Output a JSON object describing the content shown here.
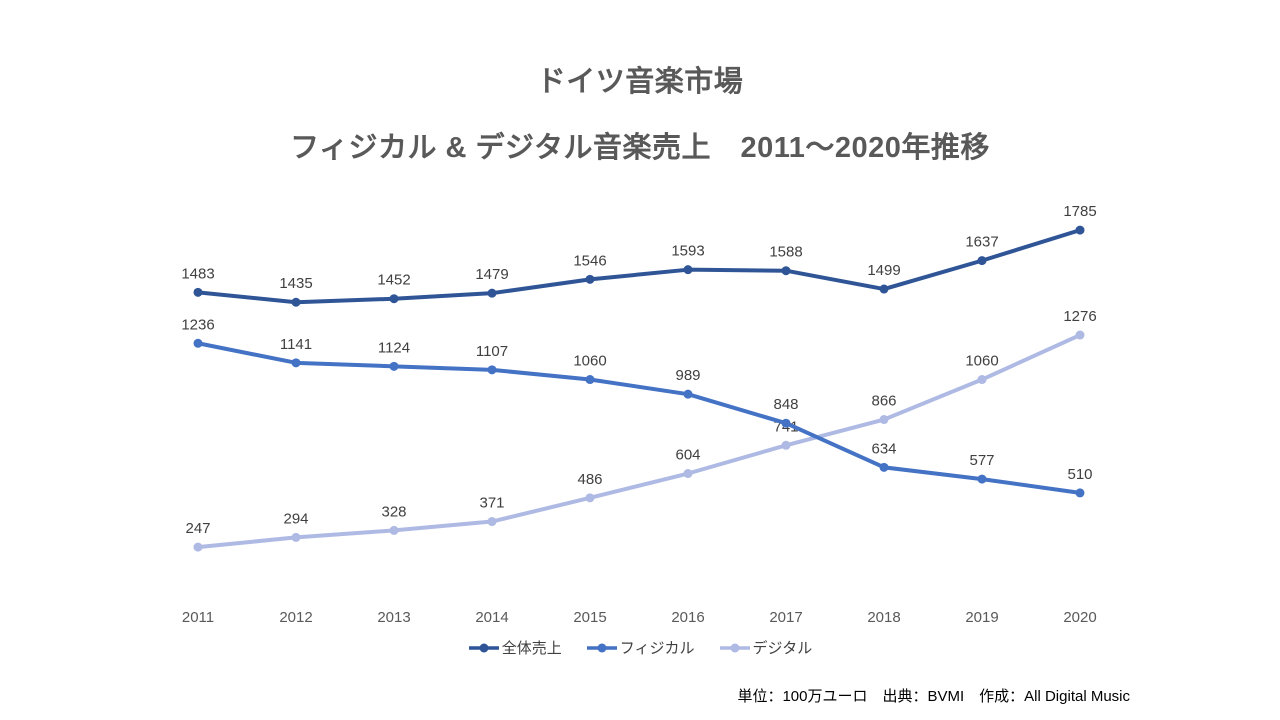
{
  "title": "ドイツ音楽市場",
  "subtitle": "フィジカル & デジタル音楽売上　2011～2020年推移",
  "footer": {
    "text": "単位：100万ユーロ　出典：BVMI　作成：All Digital Music"
  },
  "chart_data": {
    "type": "line",
    "title": "ドイツ音楽市場 フィジカル & デジタル音楽売上 2011～2020年推移",
    "categories": [
      "2011",
      "2012",
      "2013",
      "2014",
      "2015",
      "2016",
      "2017",
      "2018",
      "2019",
      "2020"
    ],
    "series": [
      {
        "name": "全体売上",
        "color": "#2F5597",
        "values": [
          1483,
          1435,
          1452,
          1479,
          1546,
          1593,
          1588,
          1499,
          1637,
          1785
        ]
      },
      {
        "name": "フィジカル",
        "color": "#4472C4",
        "values": [
          1236,
          1141,
          1124,
          1107,
          1060,
          989,
          848,
          634,
          577,
          510
        ]
      },
      {
        "name": "デジタル",
        "color": "#AEBAE4",
        "values": [
          247,
          294,
          328,
          371,
          486,
          604,
          741,
          866,
          1060,
          1276
        ]
      }
    ],
    "xlabel": "",
    "ylabel": "",
    "unit": "100万ユーロ",
    "grid": false,
    "data_labels": true,
    "data_label_color": "#404040",
    "axis_label_color": "#595959",
    "legend_position": "bottom"
  }
}
